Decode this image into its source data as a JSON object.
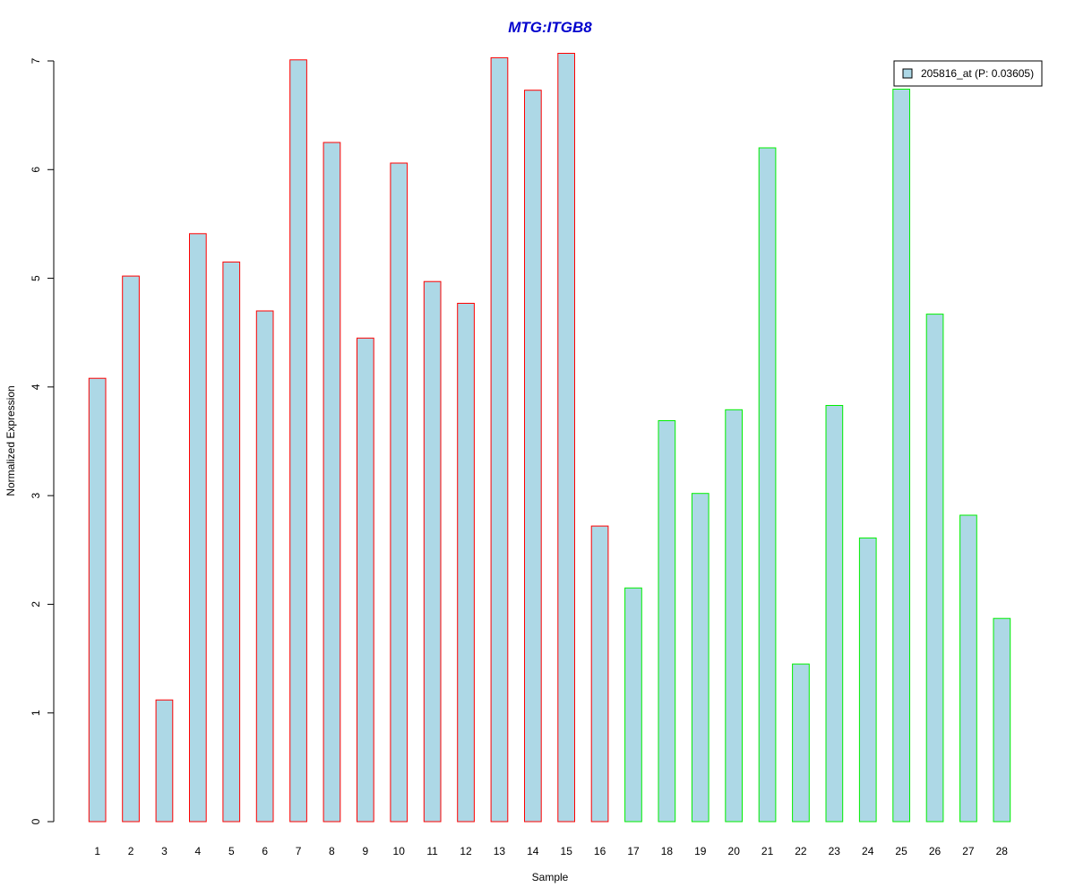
{
  "chart_data": {
    "type": "bar",
    "title": "MTG:ITGB8",
    "xlabel": "Sample",
    "ylabel": "Normalized Expression",
    "categories": [
      "1",
      "2",
      "3",
      "4",
      "5",
      "6",
      "7",
      "8",
      "9",
      "10",
      "11",
      "12",
      "13",
      "14",
      "15",
      "16",
      "17",
      "18",
      "19",
      "20",
      "21",
      "22",
      "23",
      "24",
      "25",
      "26",
      "27",
      "28"
    ],
    "series": [
      {
        "name": "205816_at (P: 0.03605)",
        "values": [
          4.08,
          5.02,
          1.12,
          5.41,
          5.15,
          4.7,
          7.01,
          6.25,
          4.45,
          6.06,
          4.97,
          4.77,
          7.03,
          6.73,
          7.07,
          2.72,
          2.15,
          3.69,
          3.02,
          3.79,
          6.2,
          1.45,
          3.83,
          2.61,
          6.74,
          4.67,
          2.82,
          1.87
        ]
      }
    ],
    "groups": [
      {
        "samples": [
          1,
          16
        ],
        "border_color": "#ff0000"
      },
      {
        "samples": [
          17,
          28
        ],
        "border_color": "#00ee00"
      }
    ],
    "ylim": [
      0,
      7
    ],
    "yticks": [
      0,
      1,
      2,
      3,
      4,
      5,
      6,
      7
    ],
    "grid": false,
    "legend_position": "top-right",
    "colors": {
      "bar_fill": "#add8e6",
      "title": "#0000cd"
    }
  }
}
